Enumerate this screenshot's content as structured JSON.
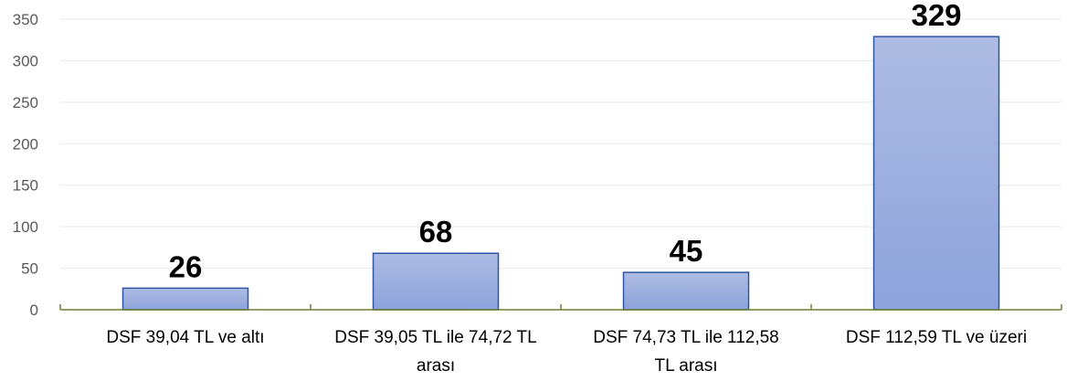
{
  "chart_data": {
    "type": "bar",
    "categories": [
      [
        "DSF 39,04 TL ve altı"
      ],
      [
        "DSF 39,05 TL ile 74,72 TL",
        "arası"
      ],
      [
        "DSF 74,73 TL ile 112,58",
        "TL arası"
      ],
      [
        "DSF 112,59 TL ve üzeri"
      ]
    ],
    "values": [
      26,
      68,
      45,
      329
    ],
    "data_labels": [
      "26",
      "68",
      "45",
      "329"
    ],
    "yticks": [
      "0",
      "50",
      "100",
      "150",
      "200",
      "250",
      "300",
      "350"
    ],
    "ylim": [
      0,
      350
    ],
    "grid": true,
    "legend": "none",
    "colors": {
      "bar_top": "#AEBCE3",
      "bar_bottom": "#8DA3DB",
      "bar_stroke": "#2F55A4",
      "axis": "#6E7F33",
      "grid": "#E8E8E8"
    }
  }
}
